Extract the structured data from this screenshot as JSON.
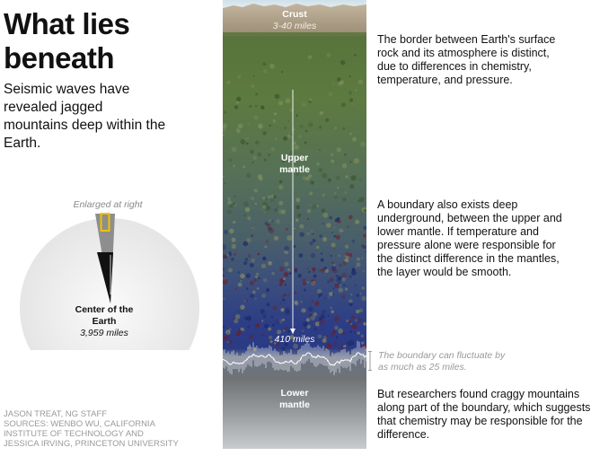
{
  "title": "What lies beneath",
  "subtitle": "Seismic waves have revealed jagged mountains deep within the Earth.",
  "globe": {
    "enlarged_label": "Enlarged at right",
    "center_name": "Center of the Earth",
    "center_depth": "3,959 miles"
  },
  "column": {
    "crust_name": "Crust",
    "crust_depth": "3-40 miles",
    "upper_mantle": "Upper mantle",
    "boundary_depth": "410 miles",
    "lower_mantle": "Lower mantle"
  },
  "notes": {
    "crust": "The border between Earth's surface rock and its atmosphere is distinct, due to differences in chemistry, temperature, and pressure.",
    "boundary": "A boundary also exists deep underground, between the upper and lower mantle. If temperature and pressure alone were responsible for the distinct difference in the mantles, the layer would be smooth.",
    "fluctuation": "The boundary can fluctuate by as much as 25 miles.",
    "craggy": "But researchers found craggy mountains along part of the boundary, which suggests that chemistry may be responsible for the difference."
  },
  "credits": [
    "JASON TREAT, NG STAFF",
    "SOURCES: WENBO WU, CALIFORNIA",
    "INSTITUTE OF TECHNOLOGY AND",
    "JESSICA IRVING, PRINCETON UNIVERSITY"
  ],
  "colors": {
    "crust": "#b8a890",
    "upper_mantle_top": "#5f7a3e",
    "upper_mantle_mid": "#4d6a5c",
    "transition": "#2b3d78",
    "lower_mantle": "#b9bcbf",
    "highlight_box": "#f2c200"
  }
}
